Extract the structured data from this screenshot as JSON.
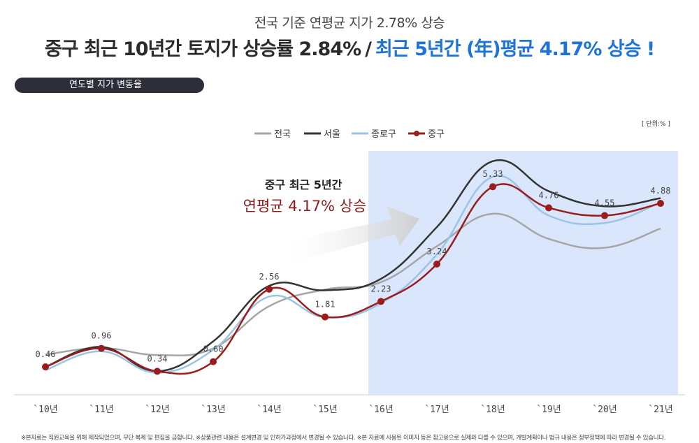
{
  "header": {
    "subtitle": "전국 기준 연평균 지가 2.78% 상승",
    "headline_left": "중구 최근 10년간 토지가 상승률 2.84%",
    "headline_sep": "/",
    "headline_right": "최근 5년간 (年)평균 4.17% 상승 !"
  },
  "section_label": "연도별 지가 변동율",
  "unit_label": "[ 단위:% ]",
  "annotation": {
    "line1": "중구 최근 5년간",
    "line2": "연평균 4.17% 상승"
  },
  "footnote": "※본자료는 직원교육을 위해 제작되었으며, 무단 복제 및 편집을 금합니다.  ※상품관련 내용은 설계변경 및 인허가과정에서 변경될 수 있습니다.  ※본 자료에 사용된 이미지 등은 참고용으로 실제와 다를 수 있으며, 개발계획이나 법규 내용은 정부정책에 따라 변경될 수 있습니다.",
  "colors": {
    "jeonguk": "#a6a6a6",
    "seoul": "#333333",
    "jongno": "#9cc3e6",
    "junggu": "#9b1c1c",
    "highlight": "#dae6fb",
    "accent_blue": "#1e73d6"
  },
  "chart_data": {
    "type": "line",
    "categories": [
      "`10년",
      "`11년",
      "`12년",
      "`13년",
      "`14년",
      "`15년",
      "`16년",
      "`17년",
      "`18년",
      "`19년",
      "`20년",
      "`21년"
    ],
    "series": [
      {
        "name": "전국",
        "values": [
          0.79,
          0.97,
          0.78,
          0.96,
          2.1,
          2.55,
          2.75,
          3.72,
          4.6,
          3.92,
          3.68,
          4.2
        ]
      },
      {
        "name": "서울",
        "values": [
          0.46,
          1.0,
          0.34,
          1.15,
          2.65,
          2.53,
          2.84,
          4.24,
          6.02,
          5.21,
          4.8,
          5.02
        ]
      },
      {
        "name": "종로구",
        "values": [
          0.37,
          0.88,
          0.3,
          0.92,
          2.36,
          1.8,
          2.18,
          3.5,
          5.6,
          4.55,
          4.35,
          4.9
        ]
      },
      {
        "name": "중구",
        "values": [
          0.46,
          0.96,
          0.34,
          0.6,
          2.56,
          1.81,
          2.23,
          3.24,
          5.33,
          4.76,
          4.55,
          4.88
        ]
      }
    ],
    "data_labels": [
      "0.46",
      "0.96",
      "0.34",
      "0.60",
      "2.56",
      "1.81",
      "2.23",
      "3.24",
      "5.33",
      "4.76",
      "4.55",
      "4.88"
    ],
    "highlight_range": [
      "`16년",
      "`21년"
    ],
    "ylim": [
      -0.2,
      6.6
    ],
    "grid": false,
    "legend_position": "top-center"
  }
}
